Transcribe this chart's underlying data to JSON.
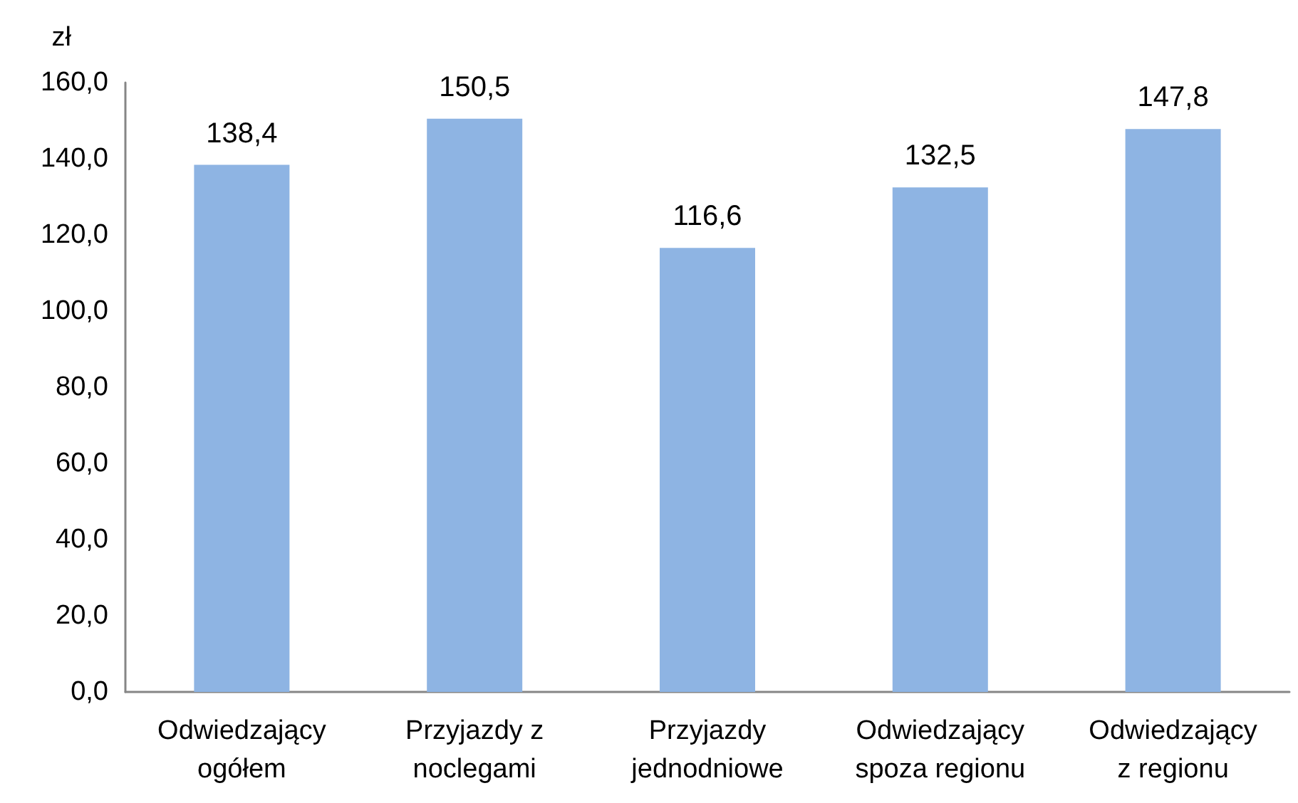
{
  "chart_data": {
    "type": "bar",
    "ylabel": "zł",
    "categories": [
      "Odwiedzający ogółem",
      "Przyjazdy z noclegami",
      "Przyjazdy jednodniowe",
      "Odwiedzający spoza regionu",
      "Odwiedzający z regionu"
    ],
    "values": [
      138.4,
      150.5,
      116.6,
      132.5,
      147.8
    ],
    "value_labels": [
      "138,4",
      "150,5",
      "116,6",
      "132,5",
      "147,8"
    ],
    "color": "#8eb4e3",
    "ylim": [
      0,
      160
    ],
    "yticks": [
      {
        "value": 0,
        "label": "0,0"
      },
      {
        "value": 20,
        "label": "20,0"
      },
      {
        "value": 40,
        "label": "40,0"
      },
      {
        "value": 60,
        "label": "60,0"
      },
      {
        "value": 80,
        "label": "80,0"
      },
      {
        "value": 100,
        "label": "100,0"
      },
      {
        "value": 120,
        "label": "120,0"
      },
      {
        "value": 140,
        "label": "140,0"
      },
      {
        "value": 160,
        "label": "160,0"
      }
    ]
  }
}
